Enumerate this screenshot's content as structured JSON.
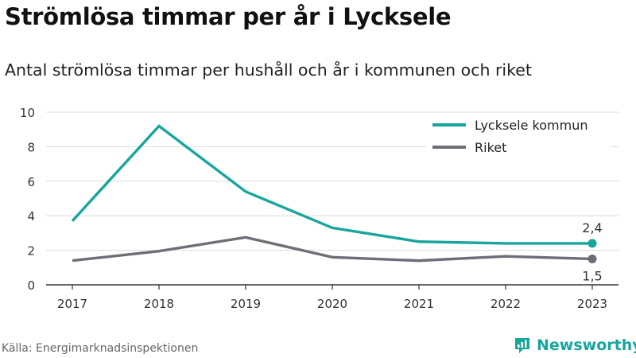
{
  "title": "Strömlösa timmar per år i Lycksele",
  "subtitle": "Antal strömlösa timmar per hushåll och år i kommunen och riket",
  "source": "Källa: Energimarknadsinspektionen",
  "brand": {
    "name": "Newsworthy",
    "icon": "newsworthy-logo-icon"
  },
  "colors": {
    "accent": "#18a69c",
    "secondary": "#6e6e76",
    "brand": "#18a69c"
  },
  "chart_data": {
    "type": "line",
    "x": [
      "2017",
      "2018",
      "2019",
      "2020",
      "2021",
      "2022",
      "2023"
    ],
    "ylim": [
      0,
      10
    ],
    "yticks": [
      0,
      2,
      4,
      6,
      8,
      10
    ],
    "grid": true,
    "legend_position": "top-right",
    "series": [
      {
        "name": "Lycksele kommun",
        "color": "#18a69c",
        "values": [
          3.7,
          9.2,
          5.4,
          3.3,
          2.5,
          2.4,
          2.4
        ],
        "end_label": "2,4",
        "end_label_position": "above"
      },
      {
        "name": "Riket",
        "color": "#6e6e76",
        "values": [
          1.4,
          1.95,
          2.75,
          1.6,
          1.4,
          1.65,
          1.5
        ],
        "end_label": "1,5",
        "end_label_position": "below"
      }
    ]
  }
}
